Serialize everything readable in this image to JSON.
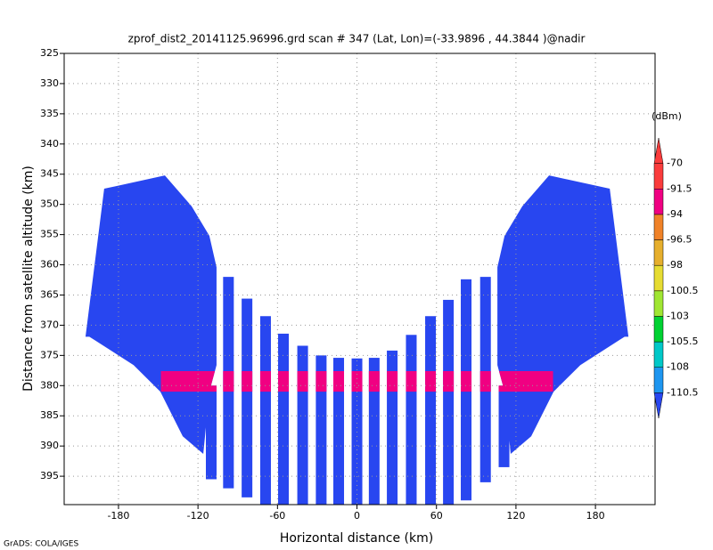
{
  "chart_data": {
    "type": "profile",
    "title": "zprof_dist2_20141125.96996.grd  scan # 347  (Lat, Lon)=(-33.9896 , 44.3844 )@nadir",
    "xlabel": "Horizontal distance (km)",
    "ylabel": "Distance from satellite altitude (km)",
    "footer": "GrADS: COLA/IGES",
    "colorbar_unit": "(dBm)",
    "xlim": [
      -221,
      225
    ],
    "ylim": [
      325,
      399.7
    ],
    "y_inverted": true,
    "xticks": [
      -180,
      -120,
      -60,
      0,
      60,
      120,
      180
    ],
    "yticks": [
      325,
      330,
      335,
      340,
      345,
      350,
      355,
      360,
      365,
      370,
      375,
      380,
      385,
      390,
      395
    ],
    "grid": true,
    "levels": [
      -110.5,
      -108,
      -105.5,
      -103,
      -100.5,
      -98,
      -96.5,
      -94,
      -91.5,
      -70
    ],
    "level_colors": [
      "#2846f0",
      "#1e96f0",
      "#00c8c8",
      "#00d232",
      "#a0e632",
      "#e6dc32",
      "#e6af2d",
      "#f08228",
      "#f00082",
      "#fa3c3c",
      "#fa3c3c"
    ],
    "field_color": "#2846f0",
    "fans": [
      {
        "x": [
          -204.9,
          -190.8,
          -145,
          -124.8,
          -111.4,
          -106,
          -106,
          -111.4,
          -116,
          -131.5,
          -148.4,
          -168.6,
          -202
        ],
        "y": [
          371.9,
          347.4,
          345.2,
          350.3,
          355.2,
          360.4,
          376.6,
          381,
          391.3,
          388.4,
          381,
          376.6,
          371.9
        ]
      },
      {
        "x": [
          204.9,
          190.8,
          145,
          124.8,
          111.4,
          106,
          106,
          111.4,
          116,
          131.5,
          148.4,
          168.6,
          202
        ],
        "y": [
          371.9,
          347.4,
          345.2,
          350.3,
          355.2,
          360.4,
          376.6,
          381,
          391.3,
          388.4,
          381,
          376.6,
          371.9
        ]
      }
    ],
    "beams": [
      {
        "x": -110,
        "top": 380,
        "bottom": 395.5
      },
      {
        "x": -97,
        "top": 362,
        "bottom": 397
      },
      {
        "x": -83,
        "top": 365.6,
        "bottom": 398.5
      },
      {
        "x": -69,
        "top": 368.5,
        "bottom": 399.7
      },
      {
        "x": -55.5,
        "top": 371.4,
        "bottom": 399.7
      },
      {
        "x": -41,
        "top": 373.4,
        "bottom": 399.7
      },
      {
        "x": -27,
        "top": 375,
        "bottom": 399.7
      },
      {
        "x": -13.8,
        "top": 375.4,
        "bottom": 399.7
      },
      {
        "x": 0,
        "top": 375.5,
        "bottom": 399.7
      },
      {
        "x": 13,
        "top": 375.4,
        "bottom": 399.7
      },
      {
        "x": 26.6,
        "top": 374.2,
        "bottom": 399.7
      },
      {
        "x": 41,
        "top": 371.6,
        "bottom": 399.7
      },
      {
        "x": 55.5,
        "top": 368.5,
        "bottom": 399.7
      },
      {
        "x": 69,
        "top": 365.8,
        "bottom": 399.7
      },
      {
        "x": 82.4,
        "top": 362.4,
        "bottom": 399
      },
      {
        "x": 97,
        "top": 362,
        "bottom": 396
      },
      {
        "x": 111,
        "top": 380,
        "bottom": 393.5
      }
    ],
    "bright_band": {
      "x": [
        -148,
        148
      ],
      "y": [
        377.6,
        381
      ],
      "color": "#f00082"
    }
  }
}
